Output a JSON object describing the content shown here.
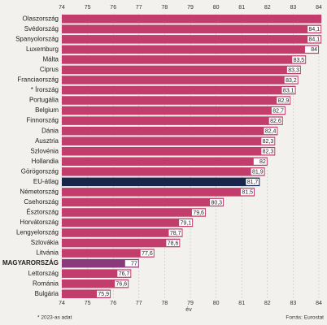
{
  "chart_data": {
    "type": "hbar",
    "categories": [
      "Olaszország",
      "Svédország",
      "Spanyolország",
      "Luxemburg",
      "Málta",
      "Ciprus",
      "Franciaország",
      "* Írország",
      "Portugália",
      "Belgium",
      "Finnország",
      "Dánia",
      "Ausztria",
      "Szlovénia",
      "Hollandia",
      "Görögország",
      "EU-átlag",
      "Németország",
      "Csehország",
      "Észtország",
      "Horvátország",
      "Lengyelország",
      "Szlovákia",
      "Litvánia",
      "MAGYARORSZÁG",
      "Lettország",
      "Románia",
      "Bulgária"
    ],
    "values": [
      84.1,
      84.1,
      84.1,
      84,
      83.5,
      83.3,
      83.2,
      83.1,
      82.9,
      82.7,
      82.6,
      82.4,
      82.3,
      82.3,
      82,
      81.9,
      81.7,
      81.5,
      80.3,
      79.6,
      79.1,
      78.7,
      78.6,
      77.6,
      77,
      76.7,
      76.6,
      75.9
    ],
    "value_labels": [
      null,
      "84,1",
      "84,1",
      "84",
      "83,5",
      "83,3",
      "83,2",
      "83,1",
      "82,9",
      "82,7",
      "82,6",
      "82,4",
      "82,3",
      "82,3",
      "82",
      "81,9",
      "81,7",
      "81,5",
      "80,3",
      "79,6",
      "79,1",
      "78,7",
      "78,6",
      "77,6",
      "77",
      "76,7",
      "76,6",
      "75,9"
    ],
    "colors": [
      "#c23d6c",
      "#c23d6c",
      "#c23d6c",
      "#c23d6c",
      "#c23d6c",
      "#c23d6c",
      "#c23d6c",
      "#c23d6c",
      "#c23d6c",
      "#c23d6c",
      "#c23d6c",
      "#c23d6c",
      "#c23d6c",
      "#c23d6c",
      "#c23d6c",
      "#c23d6c",
      "#17264a",
      "#c23d6c",
      "#c23d6c",
      "#c23d6c",
      "#c23d6c",
      "#c23d6c",
      "#c23d6c",
      "#c23d6c",
      "#8a3a7c",
      "#c23d6c",
      "#c23d6c",
      "#c23d6c"
    ],
    "xlim": [
      74,
      84
    ],
    "xticks": [
      74,
      75,
      76,
      77,
      78,
      79,
      80,
      81,
      82,
      83,
      84
    ],
    "xlabel": "év",
    "footnote": "* 2023-as adat",
    "source": "Forrás: Eurostat"
  }
}
